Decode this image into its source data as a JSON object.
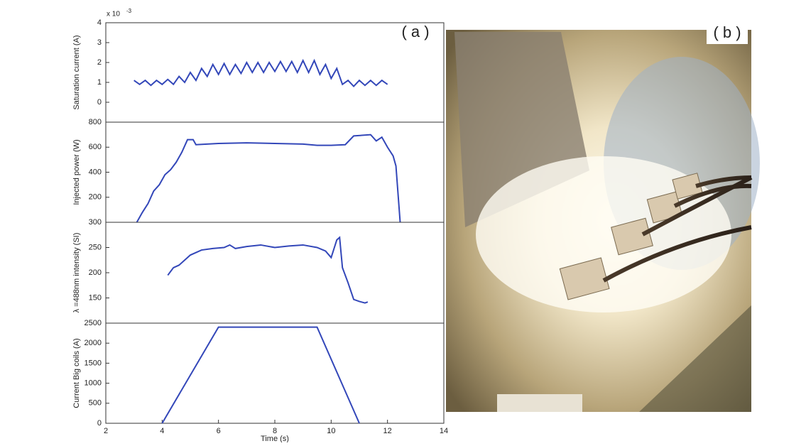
{
  "chart_data": [
    {
      "type": "line",
      "ylabel": "Saturation current (A)",
      "multiplier_base": "x 10",
      "multiplier_exponent": "-3",
      "xlim": [
        2,
        14
      ],
      "ylim": [
        -1,
        4
      ],
      "yticks": [
        0,
        1,
        2,
        3,
        4
      ],
      "x": [
        3.0,
        3.2,
        3.4,
        3.6,
        3.8,
        4.0,
        4.2,
        4.4,
        4.6,
        4.8,
        5.0,
        5.2,
        5.4,
        5.6,
        5.8,
        6.0,
        6.2,
        6.4,
        6.6,
        6.8,
        7.0,
        7.2,
        7.4,
        7.6,
        7.8,
        8.0,
        8.2,
        8.4,
        8.6,
        8.8,
        9.0,
        9.2,
        9.4,
        9.6,
        9.8,
        10.0,
        10.2,
        10.4,
        10.6,
        10.8,
        11.0,
        11.2,
        11.4,
        11.6,
        11.8,
        12.0
      ],
      "series": [
        {
          "color": "#3347b9",
          "values": [
            1.1,
            0.9,
            1.1,
            0.85,
            1.1,
            0.9,
            1.15,
            0.9,
            1.3,
            1.0,
            1.5,
            1.1,
            1.7,
            1.3,
            1.9,
            1.4,
            1.95,
            1.4,
            1.9,
            1.45,
            2.0,
            1.5,
            2.0,
            1.5,
            2.0,
            1.55,
            2.05,
            1.55,
            2.05,
            1.5,
            2.1,
            1.5,
            2.1,
            1.4,
            1.9,
            1.2,
            1.7,
            0.9,
            1.1,
            0.8,
            1.1,
            0.85,
            1.1,
            0.85,
            1.1,
            0.9
          ]
        }
      ]
    },
    {
      "type": "line",
      "ylabel": "Injected power (W)",
      "xlim": [
        2,
        14
      ],
      "ylim": [
        0,
        800
      ],
      "yticks": [
        200,
        400,
        600,
        800
      ],
      "x": [
        3.1,
        3.3,
        3.5,
        3.7,
        3.9,
        4.1,
        4.3,
        4.5,
        4.7,
        4.9,
        5.1,
        5.2,
        6,
        7,
        8,
        9,
        9.5,
        10,
        10.5,
        10.8,
        11.4,
        11.6,
        11.8,
        12,
        12.2,
        12.3,
        12.45
      ],
      "series": [
        {
          "color": "#3347b9",
          "values": [
            0,
            80,
            150,
            250,
            300,
            380,
            420,
            480,
            560,
            660,
            660,
            620,
            630,
            635,
            630,
            625,
            615,
            615,
            620,
            690,
            700,
            650,
            680,
            600,
            530,
            450,
            0
          ]
        }
      ]
    },
    {
      "type": "line",
      "ylabel": "λ =488nm intensity (SI)",
      "xlim": [
        2,
        14
      ],
      "ylim": [
        100,
        300
      ],
      "yticks": [
        150,
        200,
        250,
        300
      ],
      "x": [
        4.2,
        4.4,
        4.6,
        4.8,
        5.0,
        5.4,
        5.8,
        6.2,
        6.4,
        6.6,
        7.0,
        7.5,
        8.0,
        8.5,
        9.0,
        9.5,
        9.8,
        10.0,
        10.2,
        10.3,
        10.4,
        10.6,
        10.8,
        11.0,
        11.2,
        11.3
      ],
      "series": [
        {
          "color": "#3347b9",
          "values": [
            195,
            210,
            215,
            225,
            235,
            245,
            248,
            250,
            255,
            248,
            252,
            255,
            250,
            253,
            255,
            250,
            243,
            230,
            265,
            270,
            210,
            180,
            147,
            143,
            140,
            142
          ]
        }
      ]
    },
    {
      "type": "line",
      "ylabel": "Current Big coils (A)",
      "xlabel": "Time (s)",
      "xlim": [
        2,
        14
      ],
      "xticks": [
        2,
        4,
        6,
        8,
        10,
        12,
        14
      ],
      "ylim": [
        0,
        2500
      ],
      "yticks": [
        0,
        500,
        1000,
        1500,
        2000,
        2500
      ],
      "x": [
        4,
        6,
        9.5,
        11
      ],
      "series": [
        {
          "color": "#3347b9",
          "values": [
            0,
            2400,
            2400,
            0
          ]
        }
      ]
    }
  ],
  "panel_labels": [
    "( a )",
    "( b )"
  ]
}
